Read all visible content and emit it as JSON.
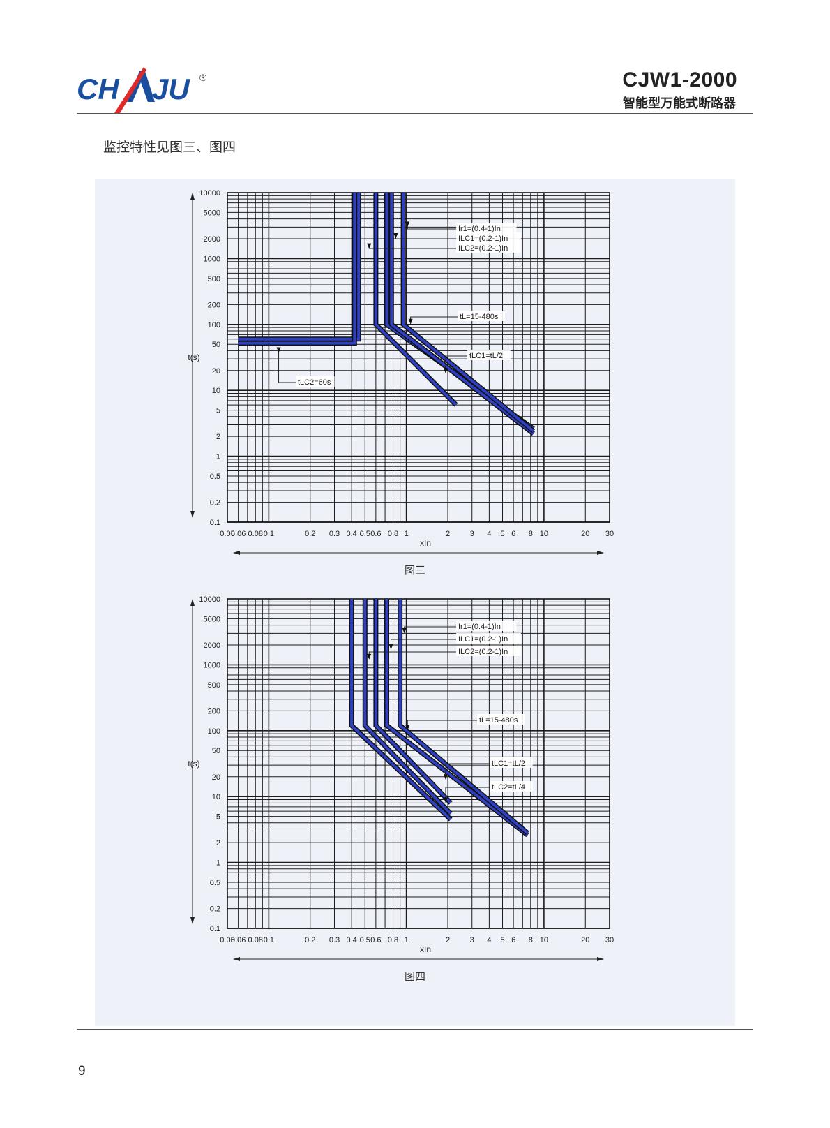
{
  "header": {
    "logo_text": "CHAJU",
    "registered_mark": "®",
    "model": "CJW1-2000",
    "subtitle": "智能型万能式断路器"
  },
  "intro_text": "监控特性见图三、图四",
  "page_number": "9",
  "colors": {
    "logo_blue": "#1a4fa0",
    "logo_red": "#e02a2a",
    "curve_blue": "#2e3fbf",
    "curve_dark": "#111111",
    "panel_bg": "#eef1f7"
  },
  "chart_data": [
    {
      "type": "line",
      "caption": "图三",
      "xlabel": "xIn",
      "ylabel": "t(s)",
      "xscale": "log",
      "yscale": "log",
      "xlim": [
        0.05,
        30
      ],
      "ylim": [
        0.1,
        10000
      ],
      "x_ticks": [
        "0.05",
        "0.06",
        "0.08",
        "0.1",
        "0.2",
        "0.3",
        "0.4",
        "0.5",
        "0.6",
        "0.8",
        "1",
        "2",
        "3",
        "4",
        "5",
        "6",
        "8",
        "10",
        "20",
        "30"
      ],
      "y_ticks": [
        "10000",
        "5000",
        "2000",
        "1000",
        "500",
        "200",
        "100",
        "50",
        "20",
        "10",
        "5",
        "2",
        "1",
        "0.5",
        "0.2",
        "0.1"
      ],
      "curves": [
        {
          "points": [
            [
              0.06,
              60
            ],
            [
              0.45,
              60
            ],
            [
              0.45,
              10000
            ]
          ]
        },
        {
          "points": [
            [
              0.06,
              52
            ],
            [
              0.42,
              52
            ],
            [
              0.42,
              10000
            ]
          ]
        },
        {
          "points": [
            [
              0.6,
              10000
            ],
            [
              0.6,
              100
            ],
            [
              2.3,
              6
            ]
          ]
        },
        {
          "points": [
            [
              0.72,
              10000
            ],
            [
              0.72,
              100
            ],
            [
              8.4,
              2.6
            ]
          ]
        },
        {
          "points": [
            [
              0.78,
              10000
            ],
            [
              0.78,
              100
            ],
            [
              8.4,
              2.2
            ]
          ]
        },
        {
          "points": [
            [
              0.95,
              10000
            ],
            [
              0.95,
              100
            ],
            [
              8.4,
              2.4
            ]
          ]
        }
      ],
      "annotations": [
        {
          "text": "Ir1=(0.4-1)In",
          "target": [
            0.95,
            3000
          ]
        },
        {
          "text": "ILC1=(0.2-1)In",
          "target": [
            0.78,
            2000
          ]
        },
        {
          "text": "ILC2=(0.2-1)In",
          "target": [
            0.5,
            1400
          ]
        },
        {
          "text": "tL=15-480s",
          "target": [
            1.0,
            100
          ]
        },
        {
          "text": "tLC1=tL/2",
          "target": [
            1.8,
            18
          ]
        },
        {
          "text": "tLC2=60s",
          "target": [
            0.11,
            37
          ]
        }
      ]
    },
    {
      "type": "line",
      "caption": "图四",
      "xlabel": "xIn",
      "ylabel": "t(s)",
      "xscale": "log",
      "yscale": "log",
      "xlim": [
        0.05,
        30
      ],
      "ylim": [
        0.1,
        10000
      ],
      "x_ticks": [
        "0.05",
        "0.06",
        "0.08",
        "0.1",
        "0.2",
        "0.3",
        "0.4",
        "0.5",
        "0.6",
        "0.8",
        "1",
        "2",
        "3",
        "4",
        "5",
        "6",
        "8",
        "10",
        "20",
        "30"
      ],
      "y_ticks": [
        "10000",
        "5000",
        "2000",
        "1000",
        "500",
        "200",
        "100",
        "50",
        "20",
        "10",
        "5",
        "2",
        "1",
        "0.5",
        "0.2",
        "0.1"
      ],
      "curves": [
        {
          "points": [
            [
              0.4,
              10000
            ],
            [
              0.4,
              120
            ],
            [
              2.1,
              4.5
            ]
          ]
        },
        {
          "points": [
            [
              0.5,
              10000
            ],
            [
              0.5,
              120
            ],
            [
              2.1,
              5.5
            ]
          ]
        },
        {
          "points": [
            [
              0.6,
              10000
            ],
            [
              0.6,
              120
            ],
            [
              2.1,
              8
            ]
          ]
        },
        {
          "points": [
            [
              0.72,
              10000
            ],
            [
              0.72,
              120
            ],
            [
              7.6,
              2.6
            ]
          ]
        },
        {
          "points": [
            [
              0.9,
              10000
            ],
            [
              0.9,
              120
            ],
            [
              7.6,
              2.8
            ]
          ]
        }
      ],
      "annotations": [
        {
          "text": "Ir1=(0.4-1)In",
          "target": [
            0.9,
            3000
          ]
        },
        {
          "text": "ILC1=(0.2-1)In",
          "target": [
            0.72,
            1700
          ]
        },
        {
          "text": "ILC2=(0.2-1)In",
          "target": [
            0.5,
            1200
          ]
        },
        {
          "text": "tL=15-480s",
          "target": [
            0.95,
            100
          ]
        },
        {
          "text": "tLC1=tL/2",
          "target": [
            1.8,
            18
          ]
        },
        {
          "text": "tLC2=tL/4",
          "target": [
            1.8,
            8
          ]
        }
      ]
    }
  ]
}
